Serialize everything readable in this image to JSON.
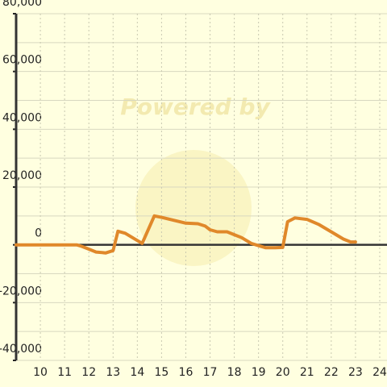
{
  "chart_data": {
    "type": "line",
    "watermark": "Powered by",
    "x": [
      9,
      11.5,
      11.7,
      12,
      12.3,
      12.7,
      13,
      13.2,
      13.5,
      14,
      14.2,
      14.7,
      15,
      15.5,
      16,
      16.5,
      16.8,
      17,
      17.3,
      17.7,
      18,
      18.3,
      18.7,
      19,
      19.3,
      19.7,
      20,
      20.2,
      20.5,
      21,
      21.5,
      22,
      22.5,
      22.8,
      23
    ],
    "series": [
      {
        "color": "#e0882a",
        "values": [
          0,
          0,
          -500,
          -1500,
          -2500,
          -2800,
          -2000,
          4700,
          4000,
          1500,
          500,
          10000,
          9500,
          8500,
          7500,
          7300,
          6500,
          5200,
          4500,
          4500,
          3500,
          2500,
          500,
          -300,
          -1000,
          -1000,
          -900,
          8000,
          9300,
          8800,
          7000,
          4500,
          2000,
          1000,
          1000
        ]
      }
    ],
    "xlim": [
      9,
      24.3
    ],
    "xticks": [
      10,
      11,
      12,
      13,
      14,
      15,
      16,
      17,
      18,
      19,
      20,
      21,
      22,
      23,
      24
    ],
    "ylim": [
      -40000,
      80000
    ],
    "yticks": [
      {
        "value": -40000,
        "label": "-40,000"
      },
      {
        "value": -20000,
        "label": "-20,000"
      },
      0,
      {
        "value": 20000,
        "label": "20,000"
      },
      {
        "value": 40000,
        "label": "40,000"
      },
      {
        "value": 60000,
        "label": "60,000"
      },
      {
        "value": 80000,
        "label": "80,000"
      }
    ],
    "y_minor_ticks": [
      -30000,
      -10000,
      10000,
      30000,
      50000,
      70000
    ],
    "grid": true
  }
}
